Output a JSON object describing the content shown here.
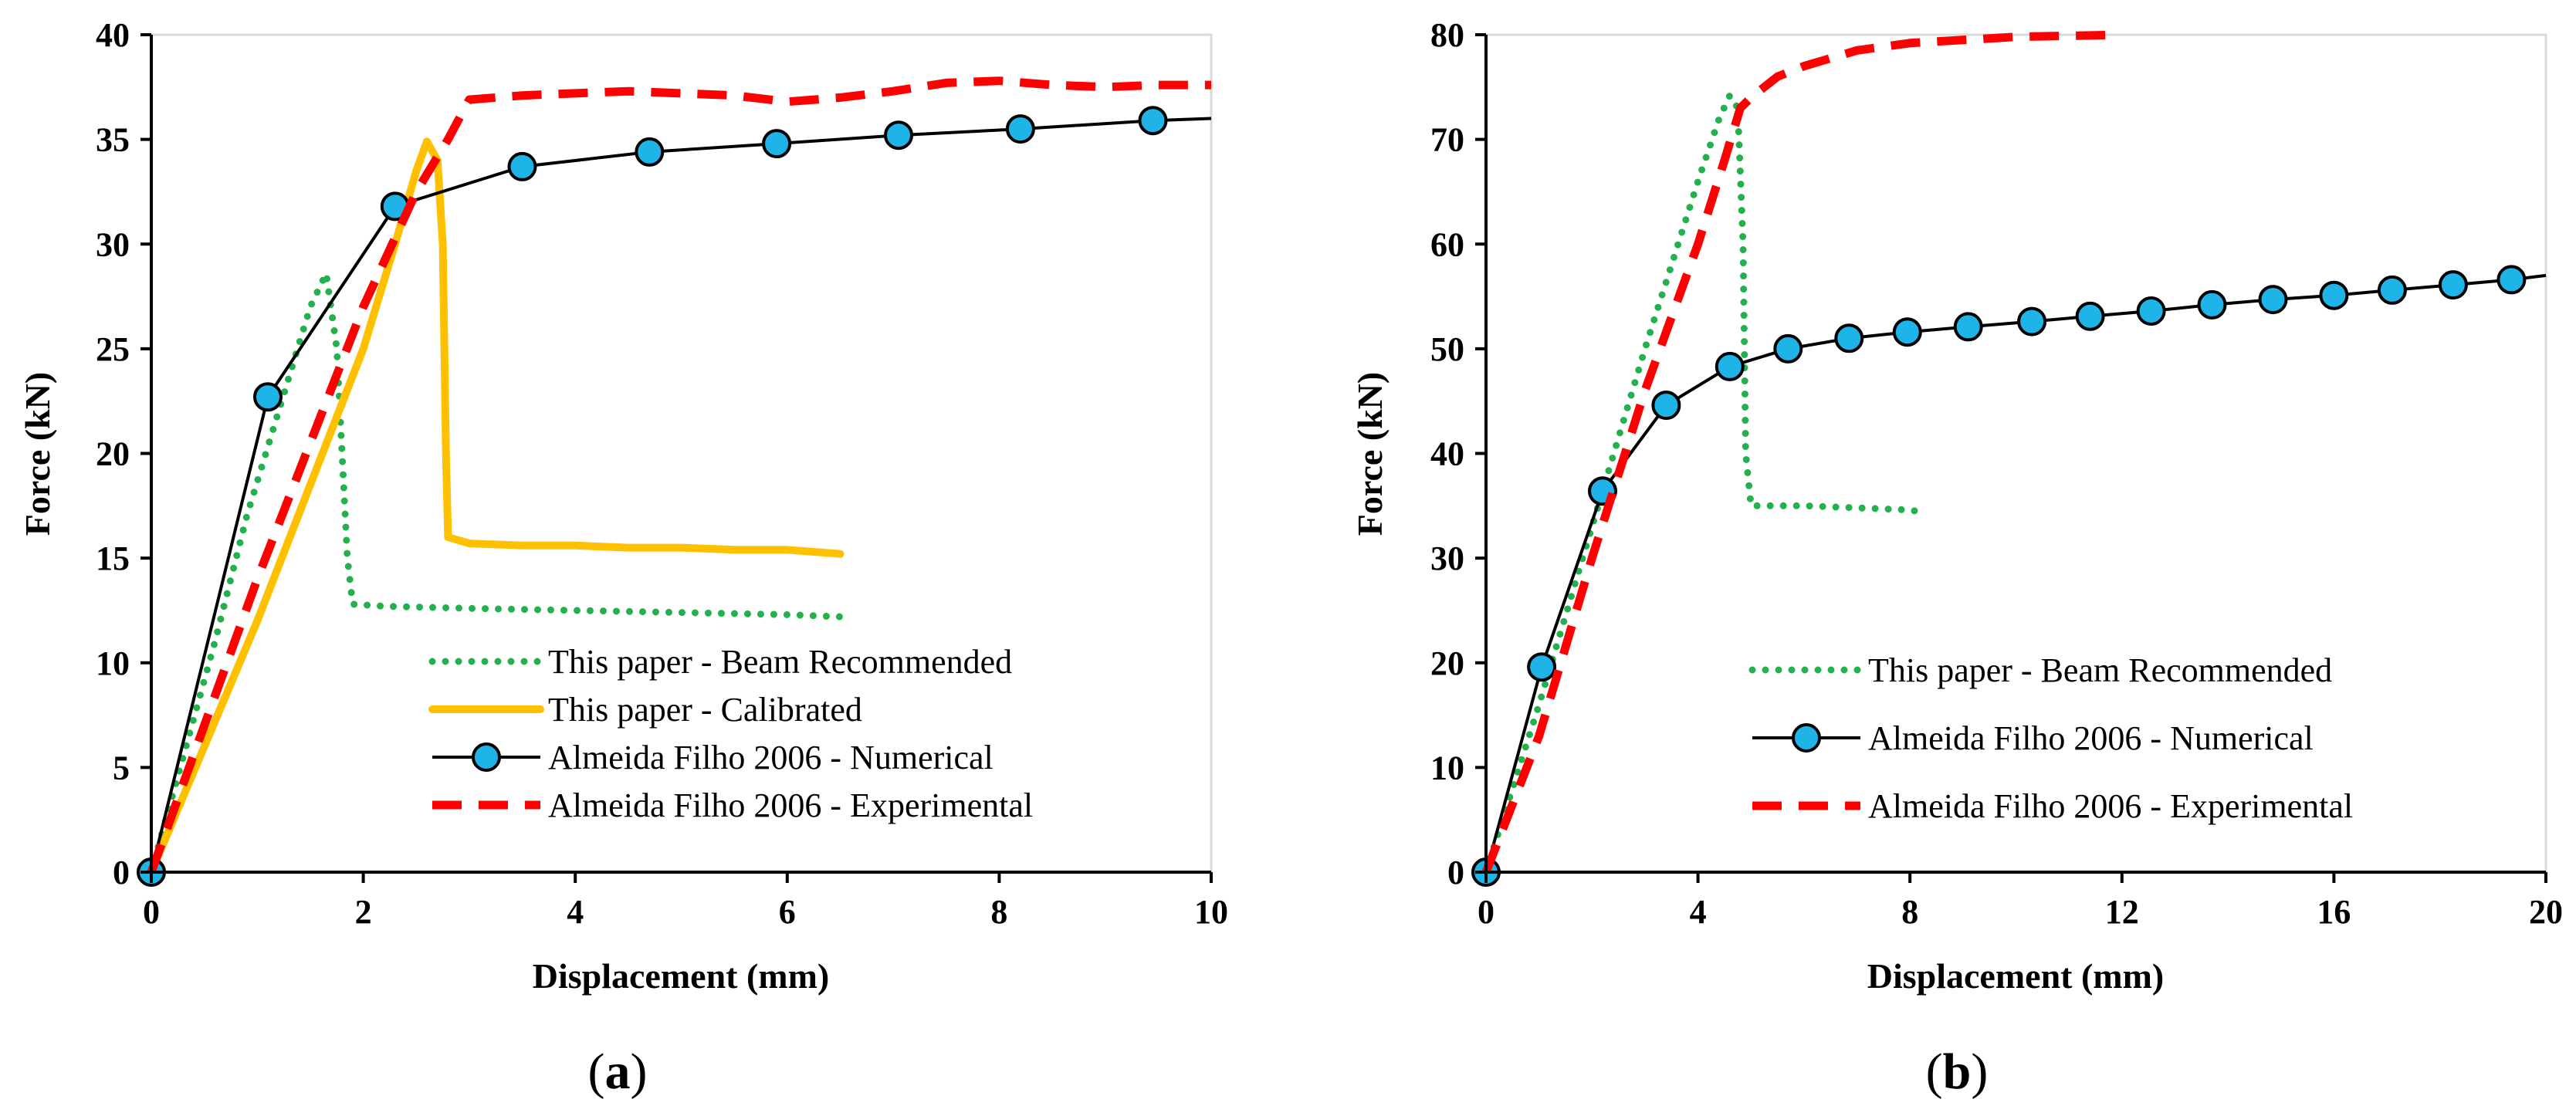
{
  "chart_data": [
    {
      "type": "line",
      "panel_label": "(a)",
      "panel_letter": "a",
      "xlabel": "Displacement (mm)",
      "ylabel": "Force (kN)",
      "xlim": [
        0,
        10
      ],
      "ylim": [
        0,
        40
      ],
      "xticks": [
        0,
        2,
        4,
        6,
        8,
        10
      ],
      "yticks": [
        0,
        5,
        10,
        15,
        20,
        25,
        30,
        35,
        40
      ],
      "grid": false,
      "legend_position": "bottom-right",
      "series": [
        {
          "name": "This paper - Beam Recommended",
          "style": "dotted",
          "color": "#22b14c",
          "x": [
            0,
            0.3,
            0.6,
            0.9,
            1.2,
            1.5,
            1.65,
            1.75,
            1.8,
            1.85,
            1.9,
            2.2,
            3,
            4,
            5,
            6,
            6.5
          ],
          "y": [
            0,
            5.5,
            11,
            17,
            22,
            27,
            28.6,
            25,
            20,
            15,
            12.8,
            12.7,
            12.6,
            12.5,
            12.4,
            12.3,
            12.2
          ]
        },
        {
          "name": "This paper - Calibrated",
          "style": "solid-thick",
          "color": "#ffc000",
          "x": [
            0,
            0.5,
            1,
            1.5,
            2,
            2.3,
            2.5,
            2.6,
            2.7,
            2.75,
            2.78,
            2.8,
            3,
            3.5,
            4,
            4.5,
            5,
            5.5,
            6,
            6.5
          ],
          "y": [
            0,
            6,
            12,
            18.5,
            25,
            30,
            33.5,
            34.9,
            34,
            30,
            20,
            16,
            15.7,
            15.6,
            15.6,
            15.5,
            15.5,
            15.4,
            15.4,
            15.2
          ]
        },
        {
          "name": "Almeida Filho 2006 - Numerical",
          "style": "solid-markers",
          "color": "#000000",
          "marker_color": "#1eb4e8",
          "x": [
            0,
            1.1,
            2.3,
            3.5,
            4.7,
            5.9,
            7.05,
            8.2,
            9.45,
            10
          ],
          "y": [
            0,
            22.7,
            31.8,
            33.7,
            34.4,
            34.8,
            35.2,
            35.5,
            35.9,
            36
          ],
          "markers": [
            true,
            true,
            true,
            true,
            true,
            true,
            true,
            true,
            true,
            false
          ]
        },
        {
          "name": "Almeida Filho 2006 - Experimental",
          "style": "dashed",
          "color": "#ff0000",
          "x": [
            0,
            0.5,
            1,
            1.5,
            2,
            2.5,
            2.8,
            3,
            3.5,
            4,
            4.5,
            5,
            5.5,
            6,
            6.5,
            7,
            7.5,
            8,
            8.5,
            9,
            9.5,
            10
          ],
          "y": [
            0,
            7,
            14,
            20.5,
            27,
            32.5,
            35,
            36.9,
            37.1,
            37.2,
            37.3,
            37.2,
            37.1,
            36.8,
            37,
            37.3,
            37.7,
            37.8,
            37.6,
            37.5,
            37.6,
            37.6
          ]
        }
      ]
    },
    {
      "type": "line",
      "panel_label": "(b)",
      "panel_letter": "b",
      "xlabel": "Displacement (mm)",
      "ylabel": "Force (kN)",
      "xlim": [
        0,
        20
      ],
      "ylim": [
        0,
        80
      ],
      "xticks": [
        0,
        4,
        8,
        12,
        16,
        20
      ],
      "yticks": [
        0,
        10,
        20,
        30,
        40,
        50,
        60,
        70,
        80
      ],
      "grid": false,
      "legend_position": "bottom-right",
      "series": [
        {
          "name": "This paper - Beam Recommended",
          "style": "dotted",
          "color": "#22b14c",
          "x": [
            0,
            1,
            2,
            3,
            3.5,
            4,
            4.4,
            4.6,
            4.75,
            4.85,
            4.9,
            5,
            6,
            7,
            8,
            8.3
          ],
          "y": [
            0,
            16,
            33,
            50,
            58,
            66,
            72,
            74.2,
            73,
            60,
            40,
            35,
            35,
            34.8,
            34.6,
            34.3
          ]
        },
        {
          "name": "Almeida Filho 2006 - Numerical",
          "style": "solid-markers",
          "color": "#000000",
          "marker_color": "#1eb4e8",
          "x": [
            0,
            1.05,
            2.2,
            3.4,
            4.6,
            5.7,
            6.85,
            7.95,
            9.1,
            10.3,
            11.4,
            12.55,
            13.7,
            14.85,
            16,
            17.1,
            18.25,
            19.35,
            20
          ],
          "y": [
            0,
            19.6,
            36.4,
            44.6,
            48.3,
            50,
            51,
            51.6,
            52.1,
            52.6,
            53.1,
            53.6,
            54.2,
            54.7,
            55.1,
            55.6,
            56.1,
            56.6,
            57
          ],
          "markers": [
            true,
            true,
            true,
            true,
            true,
            true,
            true,
            true,
            true,
            true,
            true,
            true,
            true,
            true,
            true,
            true,
            true,
            true,
            false
          ]
        },
        {
          "name": "Almeida Filho 2006 - Experimental",
          "style": "dashed",
          "color": "#ff0000",
          "x": [
            0,
            1,
            2,
            3,
            4,
            4.5,
            4.8,
            5,
            5.5,
            6,
            7,
            8,
            9,
            10,
            11,
            12
          ],
          "y": [
            0,
            13,
            30,
            46,
            60,
            68,
            73,
            74,
            76,
            77,
            78.5,
            79.2,
            79.5,
            79.8,
            79.9,
            80
          ]
        }
      ]
    }
  ]
}
